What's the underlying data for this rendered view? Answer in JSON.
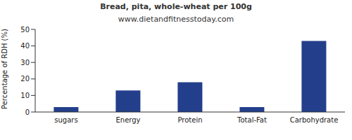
{
  "chart_data": {
    "type": "bar",
    "title": "Bread, pita, whole-wheat per 100g",
    "subtitle": "www.dietandfitnesstoday.com",
    "y_label": "Percentage of RDH (%)",
    "categories": [
      "sugars",
      "Energy",
      "Protein",
      "Total-Fat",
      "Carbohydrate"
    ],
    "values": [
      3,
      13,
      18,
      3,
      43
    ],
    "color": "#233f8b",
    "ylim": [
      0,
      50
    ],
    "yticks": [
      0,
      10,
      20,
      30,
      40,
      50
    ],
    "grid": false
  }
}
